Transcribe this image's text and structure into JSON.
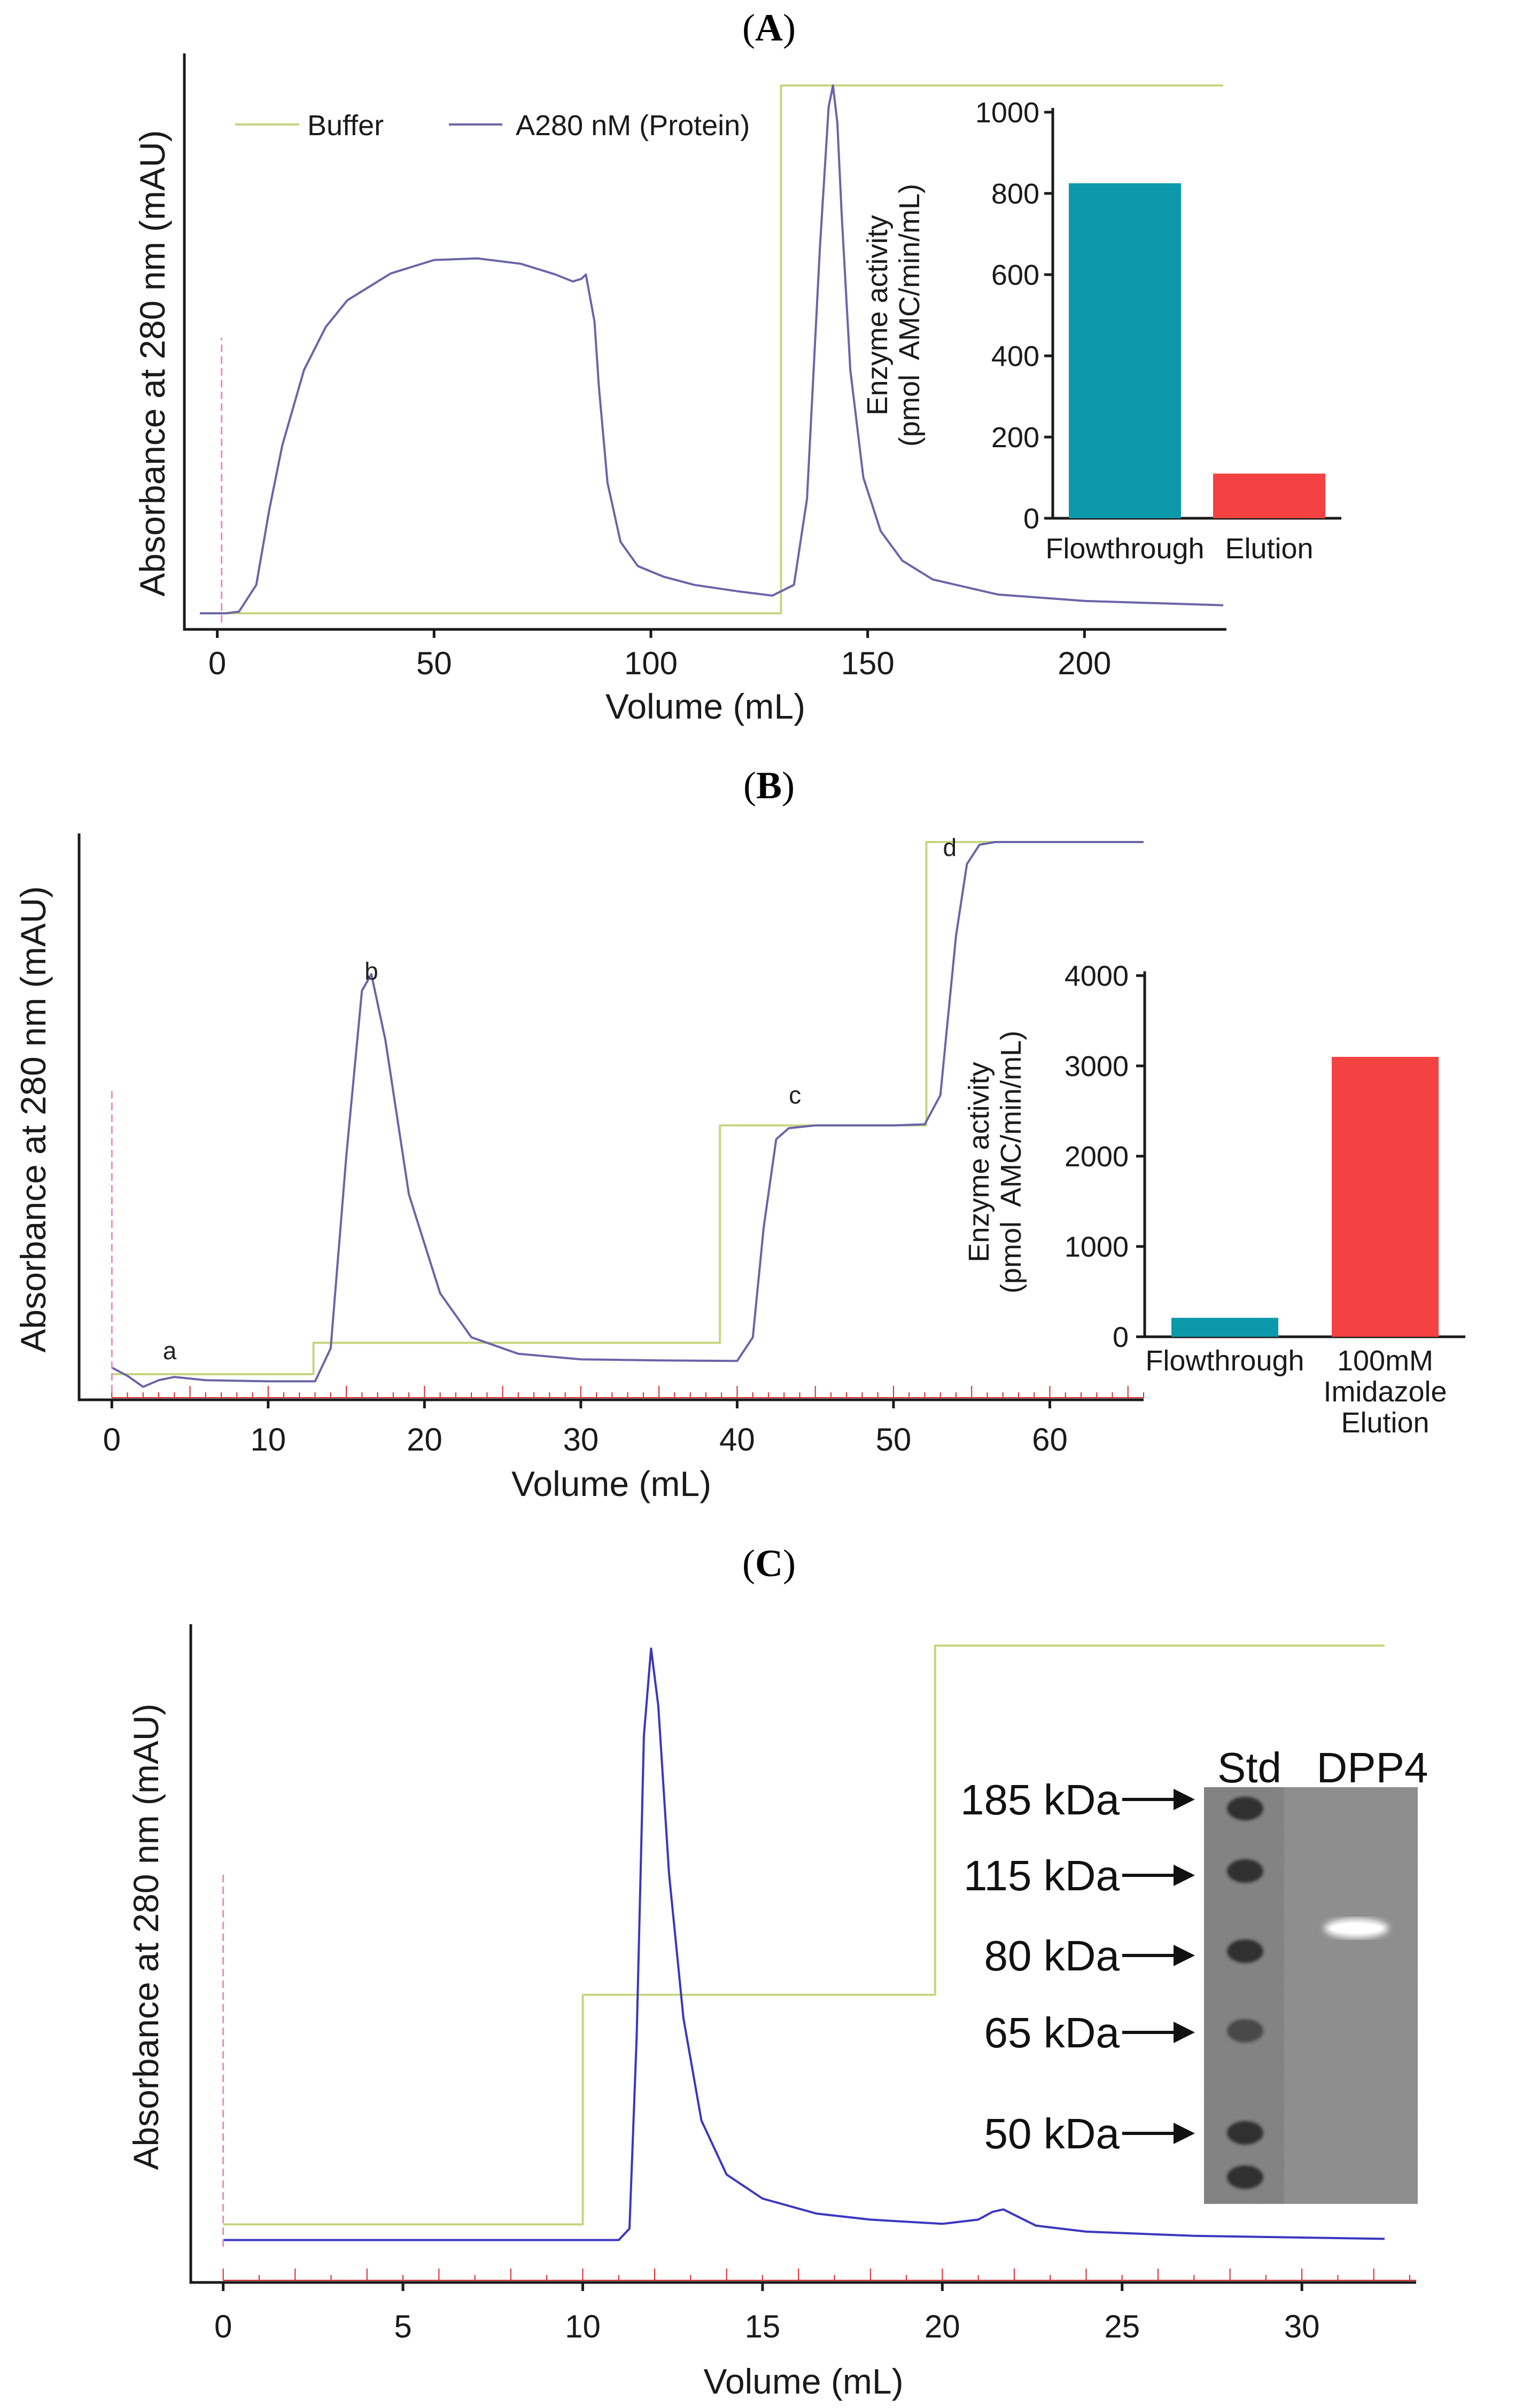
{
  "chart_data": [
    {
      "panel": "A",
      "type": "line",
      "xlabel": "Volume (mL)",
      "ylabel": "Absorbance at 280 nm (mAU)",
      "xlim": [
        -5,
        232
      ],
      "ylim": [
        0,
        1000
      ],
      "xticks": [
        0,
        50,
        100,
        150,
        200
      ],
      "legend": [
        "Buffer",
        "A280 nM (Protein)"
      ],
      "legend_position": "top-left",
      "series": [
        {
          "name": "Buffer",
          "color": "#c5d67d",
          "x": [
            -4,
            130,
            130,
            232
          ],
          "y": [
            17,
            17,
            1000,
            1000
          ]
        },
        {
          "name": "A280 nM (Protein)",
          "color": "#6a64a8",
          "x": [
            -4,
            2,
            5,
            9,
            12,
            15,
            20,
            25,
            30,
            40,
            50,
            60,
            70,
            78,
            82,
            84,
            85,
            87,
            88,
            90,
            93,
            97,
            103,
            110,
            120,
            128,
            133,
            136,
            139,
            141,
            142,
            143,
            144,
            146,
            149,
            153,
            158,
            165,
            180,
            200,
            232
          ],
          "y": [
            17,
            17,
            20,
            70,
            210,
            330,
            470,
            550,
            600,
            650,
            675,
            678,
            668,
            648,
            635,
            640,
            648,
            560,
            440,
            260,
            150,
            105,
            85,
            70,
            58,
            50,
            70,
            230,
            700,
            960,
            1000,
            930,
            760,
            470,
            270,
            170,
            115,
            80,
            52,
            40,
            32
          ]
        },
        {
          "name": "injection marker",
          "color": "#e38cc8",
          "x": [
            1,
            1
          ],
          "y": [
            0,
            530
          ]
        }
      ],
      "inset": {
        "type": "bar",
        "ylabel": "Enzyme activity (pmol AMC/min/mL)",
        "ylabel_lines": [
          "Enzyme activity",
          "(pmol  AMC/min/mL)"
        ],
        "ylim": [
          0,
          1000
        ],
        "yticks": [
          0,
          200,
          400,
          600,
          800,
          1000
        ],
        "categories": [
          [
            "Flowthrough"
          ],
          [
            "Elution"
          ]
        ],
        "values": [
          825,
          110
        ],
        "colors": [
          "#0c9aab",
          "#f44142"
        ]
      }
    },
    {
      "panel": "B",
      "type": "line",
      "xlabel": "Volume (mL)",
      "ylabel": "Absorbance at 280 nm (mAU)",
      "xlim": [
        -1,
        66
      ],
      "ylim": [
        0,
        1000
      ],
      "xticks": [
        0,
        10,
        20,
        30,
        40,
        50,
        60
      ],
      "annotations": [
        {
          "text": "a",
          "x": 3.7,
          "y": 60
        },
        {
          "text": "b",
          "x": 16.6,
          "y": 750
        },
        {
          "text": "c",
          "x": 43.7,
          "y": 525
        },
        {
          "text": "d",
          "x": 53.6,
          "y": 975
        }
      ],
      "series": [
        {
          "name": "Buffer",
          "color": "#c5d67d",
          "x": [
            0,
            12.9,
            12.9,
            38.9,
            38.9,
            52.1,
            52.1,
            66
          ],
          "y": [
            33,
            33,
            90,
            90,
            485,
            485,
            1000,
            1000
          ]
        },
        {
          "name": "A280",
          "color": "#6a64a8",
          "x": [
            0,
            1,
            2,
            3,
            4,
            6,
            10,
            13,
            14,
            15,
            16,
            16.6,
            17.5,
            19,
            21,
            23,
            26,
            30,
            35,
            40,
            41,
            41.7,
            42.5,
            43.3,
            45,
            50,
            52,
            53,
            54,
            54.7,
            55.5,
            56.5,
            58,
            62,
            66
          ],
          "y": [
            45,
            30,
            10,
            22,
            28,
            22,
            20,
            20,
            80,
            430,
            730,
            760,
            640,
            360,
            180,
            100,
            70,
            60,
            58,
            57,
            100,
            300,
            460,
            480,
            485,
            485,
            487,
            540,
            830,
            960,
            995,
            1000,
            1000,
            1000,
            1000
          ]
        },
        {
          "name": "injection marker",
          "color": "#e38cc8",
          "x": [
            0,
            0
          ],
          "y": [
            0,
            550
          ]
        }
      ],
      "inset": {
        "type": "bar",
        "ylabel": "Enzyme activity (pmol AMC/min/mL)",
        "ylabel_lines": [
          "Enzyme activity",
          "(pmol  AMC/min/mL)"
        ],
        "ylim": [
          0,
          4000
        ],
        "yticks": [
          0,
          1000,
          2000,
          3000,
          4000
        ],
        "categories": [
          [
            "Flowthrough"
          ],
          [
            "100mM",
            "Imidazole",
            "Elution"
          ]
        ],
        "values": [
          210,
          3100
        ],
        "colors": [
          "#0c9aab",
          "#f44142"
        ]
      }
    },
    {
      "panel": "C",
      "type": "line",
      "xlabel": "Volume (mL)",
      "ylabel": "Absorbance at 280 nm (mAU)",
      "xlim": [
        -0.5,
        33
      ],
      "ylim": [
        0,
        1000
      ],
      "xticks": [
        0,
        5,
        10,
        15,
        20,
        25,
        30
      ],
      "series": [
        {
          "name": "Buffer",
          "color": "#c5d67d",
          "x": [
            0,
            10,
            10,
            19.8,
            19.8,
            32.3
          ],
          "y": [
            37,
            37,
            419,
            419,
            1000,
            1000
          ]
        },
        {
          "name": "A280",
          "color": "#3a36c0",
          "x": [
            0,
            10,
            11,
            11.3,
            11.5,
            11.7,
            11.9,
            12.1,
            12.4,
            12.8,
            13.3,
            14,
            15,
            16.5,
            18,
            20,
            21,
            21.4,
            21.7,
            22.1,
            22.6,
            24,
            27,
            32.3
          ],
          "y": [
            11,
            11,
            11,
            30,
            350,
            850,
            995,
            900,
            620,
            380,
            210,
            120,
            80,
            55,
            45,
            38,
            45,
            58,
            62,
            50,
            35,
            25,
            18,
            13
          ]
        },
        {
          "name": "injection marker",
          "color": "#e38cc8",
          "x": [
            0,
            0
          ],
          "y": [
            0,
            620
          ]
        }
      ]
    }
  ],
  "panel_labels": {
    "A": "A",
    "B": "B",
    "C": "C"
  },
  "gel": {
    "lane_labels": [
      "Std",
      "DPP4"
    ],
    "markers": [
      "185 kDa",
      "115 kDa",
      "80 kDa",
      "65 kDa",
      "50 kDa"
    ],
    "arrow_glyph": "→",
    "band_label": "DPP4"
  },
  "colors": {
    "buffer": "#c5d67d",
    "protein_a": "#6a64a8",
    "protein_c": "#3a36c0",
    "marker": "#e38cc8",
    "flowthrough_bar": "#0c9aab",
    "elution_bar": "#f44142",
    "ruler": "#d9262c"
  }
}
